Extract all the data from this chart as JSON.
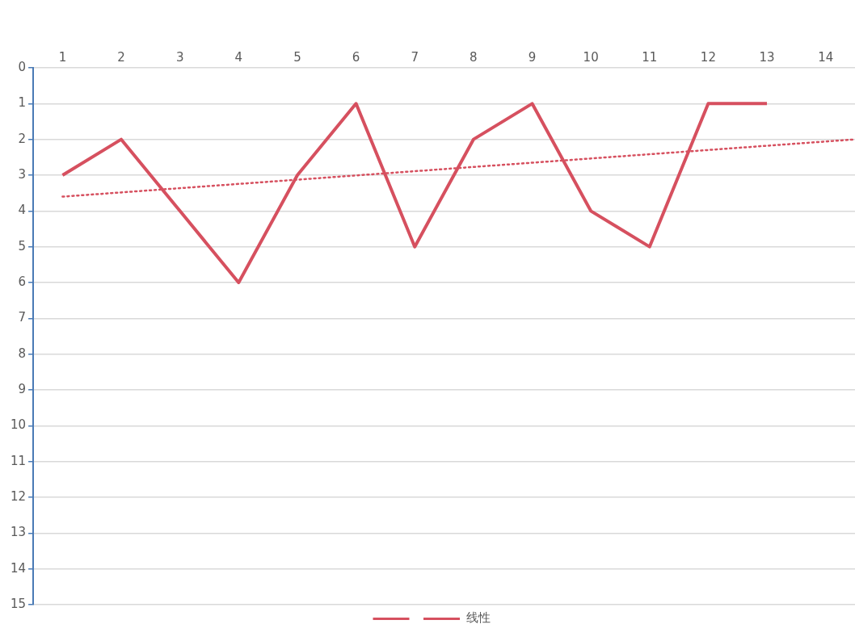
{
  "chart_data": {
    "type": "line",
    "xlim": [
      0.5,
      14.5
    ],
    "xticks": [
      1,
      2,
      3,
      4,
      5,
      6,
      7,
      8,
      9,
      10,
      11,
      12,
      13,
      14
    ],
    "ylim": [
      15,
      0
    ],
    "yticks": [
      0,
      1,
      2,
      3,
      4,
      5,
      6,
      7,
      8,
      9,
      10,
      11,
      12,
      13,
      14,
      15
    ],
    "grid": "y",
    "legend": "bottom",
    "marker": "none",
    "series": [
      {
        "color": "#d6505f",
        "x": [
          1,
          2,
          3,
          4,
          5,
          6,
          7,
          8,
          9,
          10,
          11,
          12,
          13
        ],
        "values": [
          3,
          2,
          4,
          6,
          3,
          1,
          5,
          2,
          1,
          4,
          5,
          1,
          1
        ],
        "line_style": "solid"
      },
      {
        "name": "线性",
        "type": "line",
        "color": "#d6505f",
        "x": [
          1,
          14.5
        ],
        "values": [
          3.6,
          2.0
        ],
        "line_style": "dotted"
      }
    ]
  }
}
